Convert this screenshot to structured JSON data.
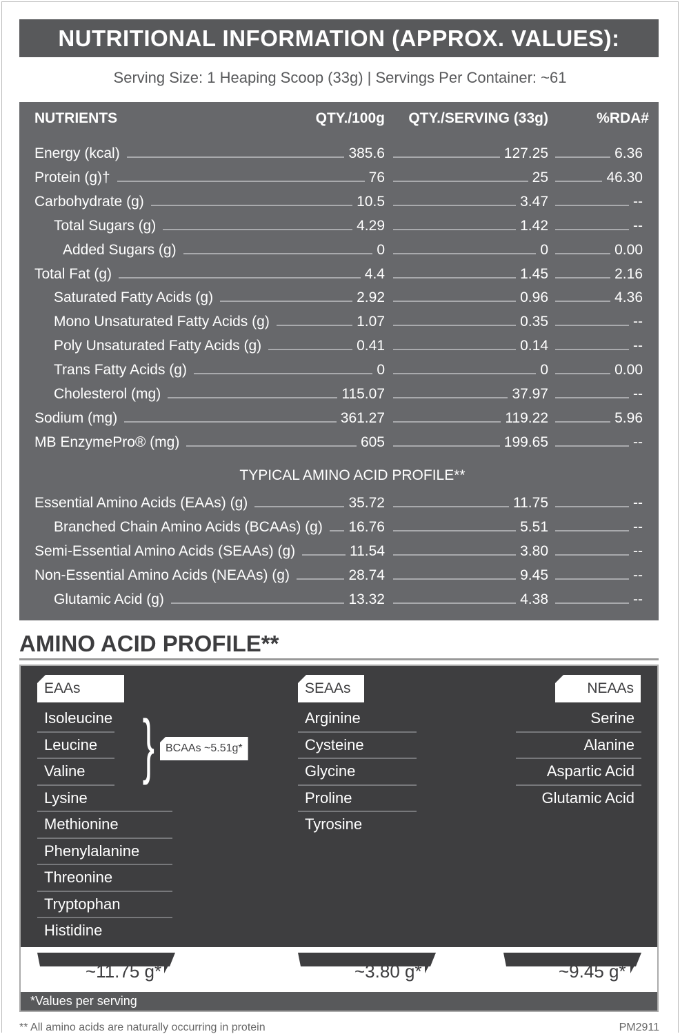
{
  "title": "NUTRITIONAL INFORMATION (APPROX. VALUES):",
  "serving": "Serving Size: 1 Heaping Scoop (33g)  |  Servings Per Container: ~61",
  "headers": [
    "NUTRIENTS",
    "QTY./100g",
    "QTY./SERVING (33g)",
    "%RDA#"
  ],
  "rows": [
    {
      "label": "Energy (kcal)",
      "indent": 0,
      "v100": "385.6",
      "vserv": "127.25",
      "rda": "6.36"
    },
    {
      "label": "Protein (g)†",
      "indent": 0,
      "v100": "76",
      "vserv": "25",
      "rda": "46.30"
    },
    {
      "label": "Carbohydrate (g)",
      "indent": 0,
      "v100": "10.5",
      "vserv": "3.47",
      "rda": "--"
    },
    {
      "label": "Total Sugars (g)",
      "indent": 1,
      "v100": "4.29",
      "vserv": "1.42",
      "rda": "--"
    },
    {
      "label": "Added Sugars (g)",
      "indent": 2,
      "v100": "0",
      "vserv": "0",
      "rda": "0.00"
    },
    {
      "label": "Total Fat (g)",
      "indent": 0,
      "v100": "4.4",
      "vserv": "1.45",
      "rda": "2.16"
    },
    {
      "label": "Saturated Fatty Acids (g)",
      "indent": 1,
      "v100": "2.92",
      "vserv": "0.96",
      "rda": "4.36"
    },
    {
      "label": "Mono Unsaturated Fatty Acids (g)",
      "indent": 1,
      "v100": "1.07",
      "vserv": "0.35",
      "rda": "--"
    },
    {
      "label": "Poly Unsaturated Fatty Acids (g)",
      "indent": 1,
      "v100": "0.41",
      "vserv": "0.14",
      "rda": "--"
    },
    {
      "label": "Trans Fatty Acids (g)",
      "indent": 1,
      "v100": "0",
      "vserv": "0",
      "rda": "0.00"
    },
    {
      "label": "Cholesterol (mg)",
      "indent": 1,
      "v100": "115.07",
      "vserv": "37.97",
      "rda": "--"
    },
    {
      "label": "Sodium (mg)",
      "indent": 0,
      "v100": "361.27",
      "vserv": "119.22",
      "rda": "5.96"
    },
    {
      "label": "MB EnzymePro® (mg)",
      "indent": 0,
      "v100": "605",
      "vserv": "199.65",
      "rda": "--"
    }
  ],
  "amino_subtitle": "TYPICAL AMINO ACID PROFILE**",
  "amino_rows": [
    {
      "label": "Essential Amino Acids (EAAs) (g)",
      "indent": 0,
      "v100": "35.72",
      "vserv": "11.75",
      "rda": "--"
    },
    {
      "label": "Branched Chain Amino Acids (BCAAs) (g)",
      "indent": 1,
      "v100": "16.76",
      "vserv": "5.51",
      "rda": "--"
    },
    {
      "label": "Semi-Essential Amino Acids (SEAAs) (g)",
      "indent": 0,
      "v100": "11.54",
      "vserv": "3.80",
      "rda": "--"
    },
    {
      "label": "Non-Essential Amino Acids (NEAAs) (g)",
      "indent": 0,
      "v100": "28.74",
      "vserv": "9.45",
      "rda": "--"
    },
    {
      "label": "Glutamic Acid (g)",
      "indent": 1,
      "v100": "13.32",
      "vserv": "4.38",
      "rda": "--"
    }
  ],
  "profile": {
    "title": "AMINO ACID PROFILE**",
    "groups": [
      {
        "tag": "EAAs",
        "items": [
          "Isoleucine",
          "Leucine",
          "Valine",
          "Lysine",
          "Methionine",
          "Phenylalanine",
          "Threonine",
          "Tryptophan",
          "Histidine"
        ],
        "amount": "~11.75 g*"
      },
      {
        "tag": "SEAAs",
        "items": [
          "Arginine",
          "Cysteine",
          "Glycine",
          "Proline",
          "Tyrosine"
        ],
        "amount": "~3.80 g*"
      },
      {
        "tag": "NEAAs",
        "items": [
          "Serine",
          "Alanine",
          "Aspartic Acid",
          "Glutamic Acid"
        ],
        "amount": "~9.45 g*"
      }
    ],
    "bcaa_note": "BCAAs ~5.51g*",
    "values_note": "*Values per serving"
  },
  "footnote": "** All amino acids are naturally occurring in protein",
  "code": "PM2911",
  "colors": {
    "header": "#58595b",
    "table": "#67686b",
    "profile": "#3e3e40"
  }
}
